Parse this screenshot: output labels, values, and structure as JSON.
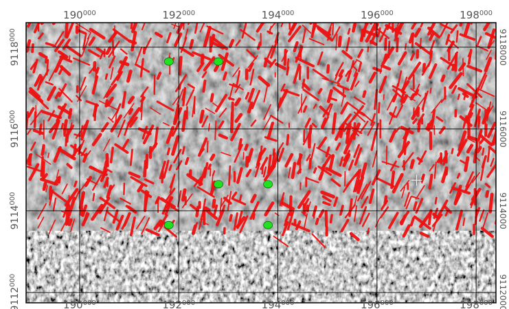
{
  "map": {
    "x_ticks": [
      {
        "main": "190",
        "sup": "000",
        "value": 190000
      },
      {
        "main": "192",
        "sup": "000",
        "value": 192000
      },
      {
        "main": "194",
        "sup": "000",
        "value": 194000
      },
      {
        "main": "196",
        "sup": "000",
        "value": 196000
      },
      {
        "main": "198",
        "sup": "000",
        "value": 198000
      }
    ],
    "y_ticks_left": [
      {
        "main": "9118",
        "sup": "000",
        "value": 9118000
      },
      {
        "main": "9116",
        "sup": "000",
        "value": 9116000
      },
      {
        "main": "9114",
        "sup": "000",
        "value": 9114000
      },
      {
        "main": "9112",
        "sup": "000",
        "value": 9112000
      }
    ],
    "y_ticks_right": [
      {
        "text": "9118000",
        "value": 9118000
      },
      {
        "text": "9116000",
        "value": 9116000
      },
      {
        "text": "9114000",
        "value": 9114000
      },
      {
        "text": "9112000",
        "value": 9112000
      }
    ],
    "x_range": [
      188920,
      198400
    ],
    "y_range": [
      9111750,
      9118600
    ],
    "markers": [
      {
        "x": 191800,
        "y": 9117650
      },
      {
        "x": 192800,
        "y": 9117650
      },
      {
        "x": 192800,
        "y": 9114650
      },
      {
        "x": 193800,
        "y": 9114650
      },
      {
        "x": 191800,
        "y": 9113650
      },
      {
        "x": 193800,
        "y": 9113650
      }
    ],
    "crosshair": {
      "x": 196800,
      "y": 9114750
    },
    "colors": {
      "lineament": "#ee1111",
      "marker": "#22e022",
      "grid": "#000000",
      "relief_base": "#8a8a8a",
      "rough_base": "#777777"
    }
  }
}
